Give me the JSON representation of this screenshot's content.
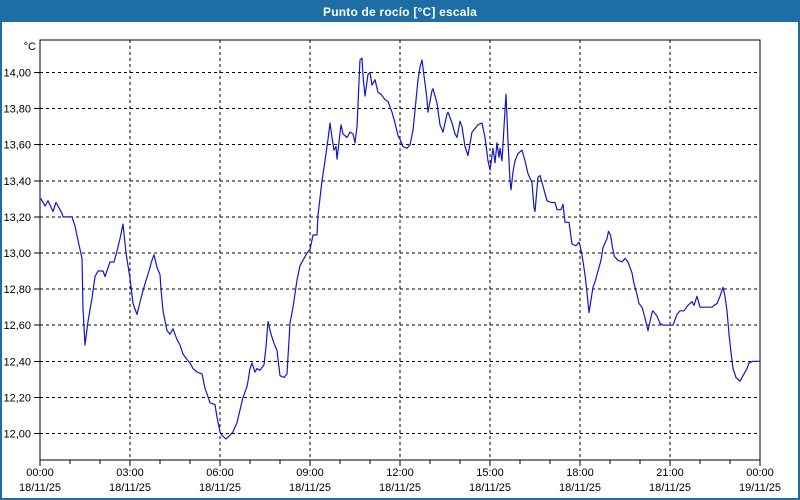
{
  "window": {
    "title": "Punto de rocío [°C] escala"
  },
  "colors": {
    "titlebar_bg": "#1c6ea4",
    "titlebar_text": "#ffffff",
    "window_border": "#1c6ea4",
    "plot_bg": "#ffffff",
    "frame": "#000000",
    "grid": "#000000",
    "tick_text": "#000000",
    "line": "#1515c8"
  },
  "chart": {
    "unit_label": "°C",
    "y_ticks": [
      {
        "value": 14.0,
        "label": "14,00"
      },
      {
        "value": 13.8,
        "label": "13,80"
      },
      {
        "value": 13.6,
        "label": "13,60"
      },
      {
        "value": 13.4,
        "label": "13,40"
      },
      {
        "value": 13.2,
        "label": "13,20"
      },
      {
        "value": 13.0,
        "label": "13,00"
      },
      {
        "value": 12.8,
        "label": "12,80"
      },
      {
        "value": 12.6,
        "label": "12,60"
      },
      {
        "value": 12.4,
        "label": "12,40"
      },
      {
        "value": 12.2,
        "label": "12,20"
      },
      {
        "value": 12.0,
        "label": "12,00"
      }
    ],
    "x_ticks": [
      {
        "hour": 0,
        "time": "00:00",
        "date": "18/11/25"
      },
      {
        "hour": 3,
        "time": "03:00",
        "date": "18/11/25"
      },
      {
        "hour": 6,
        "time": "06:00",
        "date": "18/11/25"
      },
      {
        "hour": 9,
        "time": "09:00",
        "date": "18/11/25"
      },
      {
        "hour": 12,
        "time": "12:00",
        "date": "18/11/25"
      },
      {
        "hour": 15,
        "time": "15:00",
        "date": "18/11/25"
      },
      {
        "hour": 18,
        "time": "18:00",
        "date": "18/11/25"
      },
      {
        "hour": 21,
        "time": "21:00",
        "date": "18/11/25"
      },
      {
        "hour": 24,
        "time": "00:00",
        "date": "19/11/25"
      }
    ],
    "minor_tick_every_hours": 1,
    "grid": "dashed"
  },
  "chart_data": {
    "type": "line",
    "title": "Punto de rocío [°C] escala",
    "ylabel": "°C",
    "xlabel": "",
    "x_axis": "minutes from 00:00 18/11/25 to 00:00 19/11/25",
    "xlim_minutes": [
      0,
      1440
    ],
    "y_ticks_range": [
      12.0,
      14.0
    ],
    "y_tick_step": 0.2,
    "legend": "none",
    "series": [
      {
        "name": "Punto de rocío [°C]",
        "color": "#1515c8",
        "points_min_degC": [
          [
            0,
            13.3
          ],
          [
            2,
            13.3
          ],
          [
            10,
            13.26
          ],
          [
            16,
            13.29
          ],
          [
            26,
            13.23
          ],
          [
            32,
            13.28
          ],
          [
            44,
            13.22
          ],
          [
            46,
            13.2
          ],
          [
            64,
            13.2
          ],
          [
            70,
            13.15
          ],
          [
            76,
            13.07
          ],
          [
            84,
            12.97
          ],
          [
            86,
            12.69
          ],
          [
            90,
            12.49
          ],
          [
            96,
            12.62
          ],
          [
            104,
            12.75
          ],
          [
            110,
            12.87
          ],
          [
            116,
            12.9
          ],
          [
            126,
            12.9
          ],
          [
            130,
            12.87
          ],
          [
            140,
            12.95
          ],
          [
            148,
            12.95
          ],
          [
            154,
            13.01
          ],
          [
            160,
            13.08
          ],
          [
            166,
            13.16
          ],
          [
            172,
            13.0
          ],
          [
            180,
            12.86
          ],
          [
            186,
            12.72
          ],
          [
            194,
            12.66
          ],
          [
            202,
            12.75
          ],
          [
            210,
            12.83
          ],
          [
            218,
            12.9
          ],
          [
            224,
            12.96
          ],
          [
            228,
            12.99
          ],
          [
            234,
            12.92
          ],
          [
            240,
            12.88
          ],
          [
            242,
            12.8
          ],
          [
            246,
            12.68
          ],
          [
            254,
            12.57
          ],
          [
            260,
            12.55
          ],
          [
            266,
            12.58
          ],
          [
            274,
            12.52
          ],
          [
            280,
            12.49
          ],
          [
            286,
            12.44
          ],
          [
            294,
            12.41
          ],
          [
            300,
            12.39
          ],
          [
            306,
            12.36
          ],
          [
            314,
            12.34
          ],
          [
            324,
            12.33
          ],
          [
            330,
            12.25
          ],
          [
            334,
            12.22
          ],
          [
            340,
            12.17
          ],
          [
            350,
            12.16
          ],
          [
            354,
            12.09
          ],
          [
            360,
            12.01
          ],
          [
            364,
            11.99
          ],
          [
            372,
            11.97
          ],
          [
            380,
            11.99
          ],
          [
            386,
            12.01
          ],
          [
            394,
            12.06
          ],
          [
            400,
            12.13
          ],
          [
            406,
            12.2
          ],
          [
            414,
            12.26
          ],
          [
            416,
            12.29
          ],
          [
            420,
            12.36
          ],
          [
            424,
            12.39
          ],
          [
            430,
            12.34
          ],
          [
            434,
            12.36
          ],
          [
            440,
            12.35
          ],
          [
            448,
            12.38
          ],
          [
            452,
            12.48
          ],
          [
            456,
            12.62
          ],
          [
            462,
            12.55
          ],
          [
            468,
            12.5
          ],
          [
            474,
            12.46
          ],
          [
            480,
            12.32
          ],
          [
            488,
            12.31
          ],
          [
            494,
            12.33
          ],
          [
            500,
            12.61
          ],
          [
            506,
            12.7
          ],
          [
            514,
            12.85
          ],
          [
            520,
            12.93
          ],
          [
            526,
            12.96
          ],
          [
            534,
            13.0
          ],
          [
            540,
            13.02
          ],
          [
            546,
            13.1
          ],
          [
            554,
            13.1
          ],
          [
            556,
            13.21
          ],
          [
            564,
            13.4
          ],
          [
            570,
            13.51
          ],
          [
            576,
            13.63
          ],
          [
            580,
            13.72
          ],
          [
            584,
            13.64
          ],
          [
            588,
            13.57
          ],
          [
            592,
            13.59
          ],
          [
            594,
            13.52
          ],
          [
            602,
            13.71
          ],
          [
            606,
            13.66
          ],
          [
            614,
            13.64
          ],
          [
            620,
            13.67
          ],
          [
            626,
            13.66
          ],
          [
            630,
            13.61
          ],
          [
            634,
            13.7
          ],
          [
            636,
            13.82
          ],
          [
            638,
            13.95
          ],
          [
            640,
            14.07
          ],
          [
            644,
            14.08
          ],
          [
            646,
            13.98
          ],
          [
            650,
            13.87
          ],
          [
            656,
            13.99
          ],
          [
            660,
            14.0
          ],
          [
            664,
            13.93
          ],
          [
            670,
            13.96
          ],
          [
            676,
            13.89
          ],
          [
            682,
            13.88
          ],
          [
            690,
            13.85
          ],
          [
            696,
            13.84
          ],
          [
            704,
            13.78
          ],
          [
            710,
            13.72
          ],
          [
            716,
            13.65
          ],
          [
            720,
            13.63
          ],
          [
            726,
            13.59
          ],
          [
            734,
            13.58
          ],
          [
            740,
            13.6
          ],
          [
            746,
            13.68
          ],
          [
            750,
            13.79
          ],
          [
            756,
            13.96
          ],
          [
            760,
            14.03
          ],
          [
            764,
            14.07
          ],
          [
            770,
            13.94
          ],
          [
            774,
            13.85
          ],
          [
            776,
            13.78
          ],
          [
            784,
            13.9
          ],
          [
            786,
            13.91
          ],
          [
            794,
            13.83
          ],
          [
            800,
            13.71
          ],
          [
            806,
            13.67
          ],
          [
            814,
            13.77
          ],
          [
            816,
            13.78
          ],
          [
            824,
            13.72
          ],
          [
            830,
            13.66
          ],
          [
            834,
            13.64
          ],
          [
            840,
            13.73
          ],
          [
            844,
            13.7
          ],
          [
            850,
            13.59
          ],
          [
            856,
            13.54
          ],
          [
            864,
            13.67
          ],
          [
            870,
            13.69
          ],
          [
            876,
            13.71
          ],
          [
            884,
            13.72
          ],
          [
            890,
            13.64
          ],
          [
            896,
            13.51
          ],
          [
            900,
            13.46
          ],
          [
            906,
            13.58
          ],
          [
            910,
            13.5
          ],
          [
            914,
            13.61
          ],
          [
            918,
            13.53
          ],
          [
            920,
            13.58
          ],
          [
            924,
            13.51
          ],
          [
            928,
            13.7
          ],
          [
            932,
            13.88
          ],
          [
            936,
            13.62
          ],
          [
            940,
            13.4
          ],
          [
            942,
            13.35
          ],
          [
            946,
            13.45
          ],
          [
            950,
            13.51
          ],
          [
            956,
            13.55
          ],
          [
            964,
            13.57
          ],
          [
            970,
            13.51
          ],
          [
            976,
            13.44
          ],
          [
            984,
            13.39
          ],
          [
            988,
            13.25
          ],
          [
            990,
            13.23
          ],
          [
            996,
            13.42
          ],
          [
            1000,
            13.43
          ],
          [
            1006,
            13.37
          ],
          [
            1014,
            13.29
          ],
          [
            1022,
            13.28
          ],
          [
            1030,
            13.28
          ],
          [
            1034,
            13.24
          ],
          [
            1042,
            13.24
          ],
          [
            1046,
            13.27
          ],
          [
            1050,
            13.17
          ],
          [
            1058,
            13.17
          ],
          [
            1064,
            13.05
          ],
          [
            1072,
            13.04
          ],
          [
            1078,
            13.06
          ],
          [
            1080,
            13.04
          ],
          [
            1084,
            12.99
          ],
          [
            1090,
            12.88
          ],
          [
            1094,
            12.78
          ],
          [
            1098,
            12.67
          ],
          [
            1102,
            12.74
          ],
          [
            1106,
            12.81
          ],
          [
            1110,
            12.84
          ],
          [
            1116,
            12.9
          ],
          [
            1122,
            12.96
          ],
          [
            1126,
            13.03
          ],
          [
            1134,
            13.08
          ],
          [
            1137,
            13.12
          ],
          [
            1141,
            13.1
          ],
          [
            1145,
            13.03
          ],
          [
            1149,
            12.98
          ],
          [
            1156,
            12.96
          ],
          [
            1164,
            12.95
          ],
          [
            1170,
            12.97
          ],
          [
            1176,
            12.95
          ],
          [
            1184,
            12.89
          ],
          [
            1188,
            12.83
          ],
          [
            1194,
            12.77
          ],
          [
            1198,
            12.72
          ],
          [
            1204,
            12.7
          ],
          [
            1210,
            12.64
          ],
          [
            1216,
            12.57
          ],
          [
            1224,
            12.67
          ],
          [
            1226,
            12.68
          ],
          [
            1234,
            12.65
          ],
          [
            1240,
            12.61
          ],
          [
            1246,
            12.6
          ],
          [
            1256,
            12.6
          ],
          [
            1266,
            12.6
          ],
          [
            1270,
            12.63
          ],
          [
            1274,
            12.66
          ],
          [
            1280,
            12.68
          ],
          [
            1288,
            12.68
          ],
          [
            1296,
            12.71
          ],
          [
            1304,
            12.73
          ],
          [
            1308,
            12.71
          ],
          [
            1314,
            12.76
          ],
          [
            1320,
            12.7
          ],
          [
            1328,
            12.7
          ],
          [
            1336,
            12.7
          ],
          [
            1344,
            12.7
          ],
          [
            1348,
            12.71
          ],
          [
            1354,
            12.72
          ],
          [
            1360,
            12.76
          ],
          [
            1366,
            12.81
          ],
          [
            1370,
            12.76
          ],
          [
            1374,
            12.68
          ],
          [
            1378,
            12.55
          ],
          [
            1382,
            12.45
          ],
          [
            1386,
            12.36
          ],
          [
            1392,
            12.31
          ],
          [
            1400,
            12.29
          ],
          [
            1406,
            12.32
          ],
          [
            1414,
            12.36
          ],
          [
            1418,
            12.39
          ],
          [
            1426,
            12.4
          ],
          [
            1438,
            12.4
          ]
        ]
      }
    ]
  }
}
